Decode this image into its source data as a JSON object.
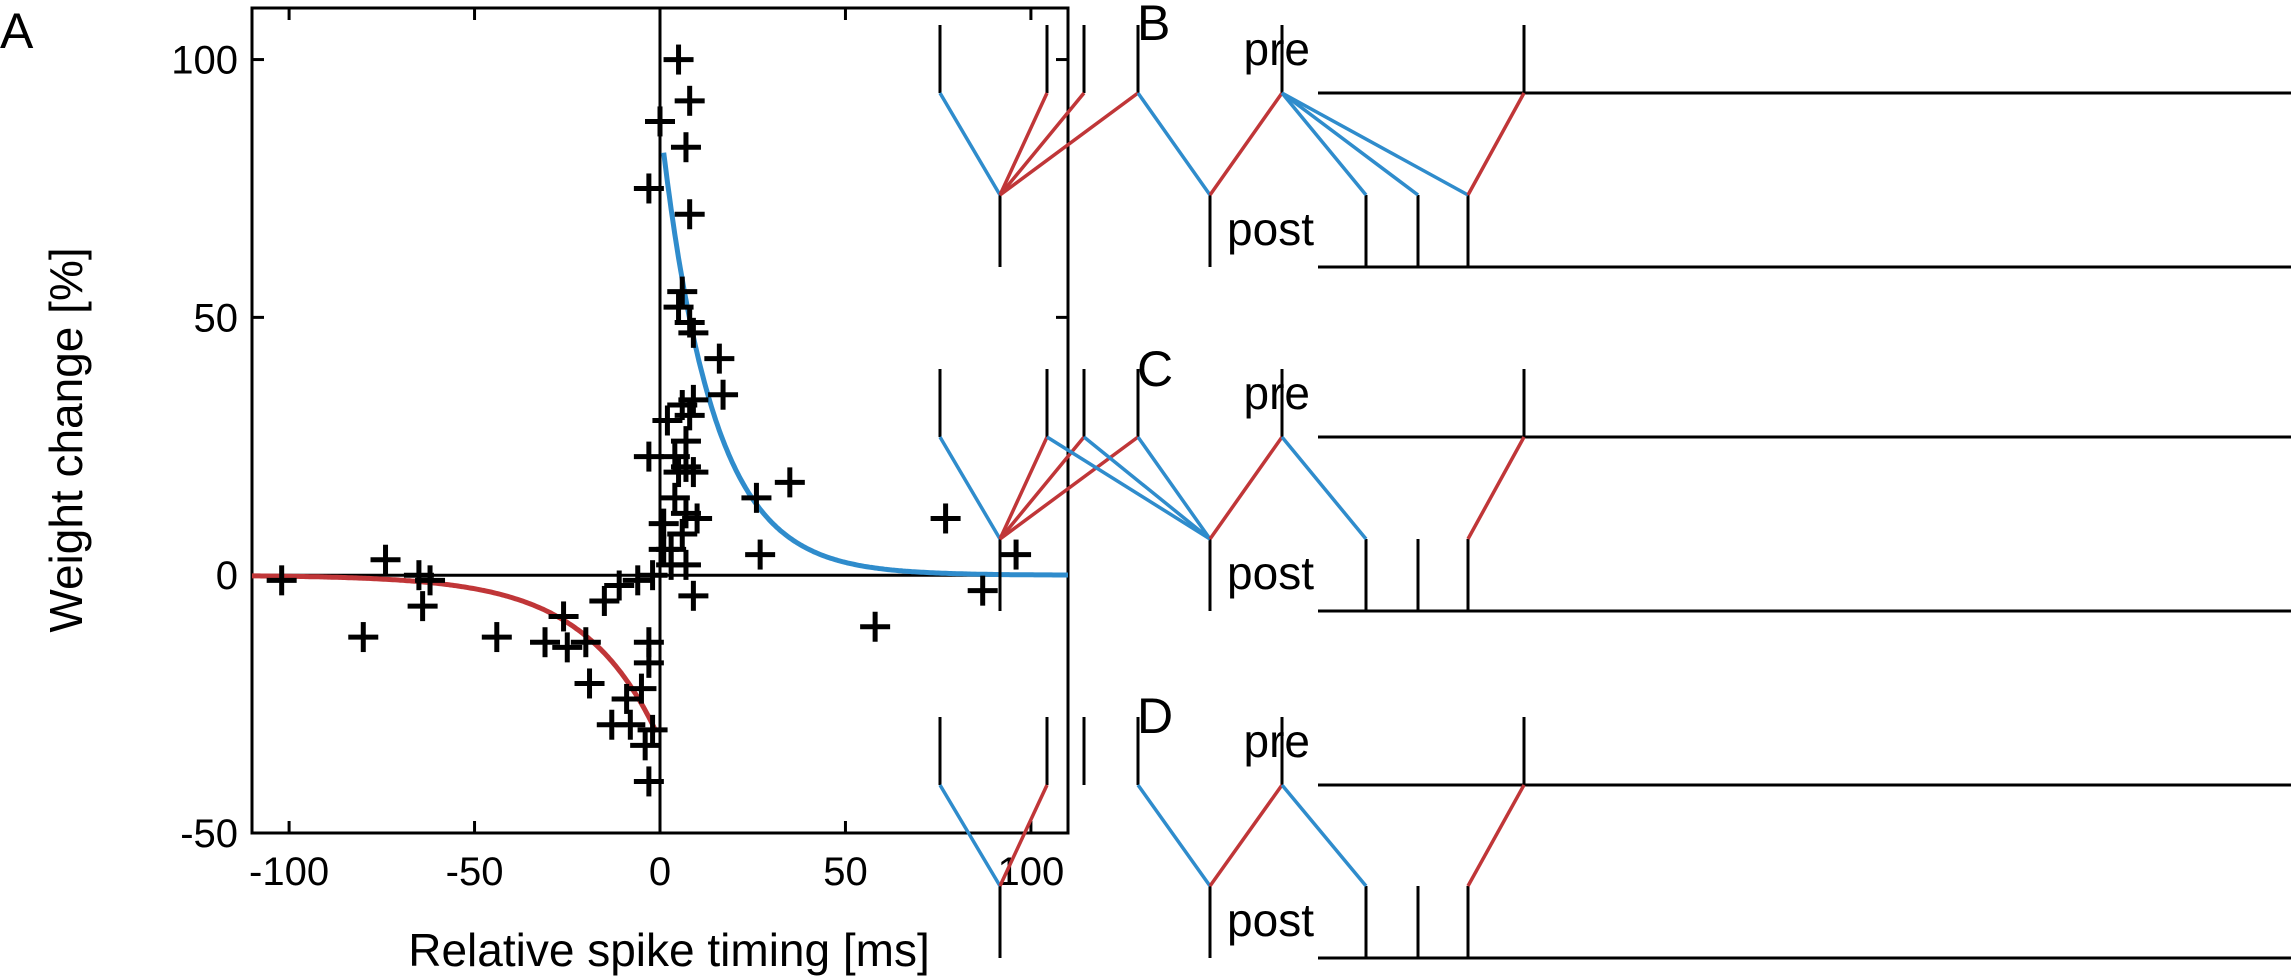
{
  "chart_data": [
    {
      "type": "scatter",
      "panel_label": "A",
      "xlabel": "Relative spike timing [ms]",
      "ylabel": "Weight change [%]",
      "xlim": [
        -110,
        110
      ],
      "ylim": [
        -50,
        110
      ],
      "xticks": [
        -100,
        -50,
        0,
        50,
        100
      ],
      "xtick_labels": [
        "-100",
        "-50",
        "0",
        "50",
        "100"
      ],
      "yticks": [
        -50,
        0,
        50,
        100
      ],
      "ytick_labels": [
        "-50",
        "0",
        "50",
        "100"
      ],
      "points": [
        [
          -102,
          -1
        ],
        [
          -80,
          -12
        ],
        [
          -74,
          3
        ],
        [
          -65,
          0
        ],
        [
          -64,
          -6
        ],
        [
          -62,
          -1
        ],
        [
          -44,
          -12
        ],
        [
          -31,
          -13
        ],
        [
          -26,
          -8
        ],
        [
          -25,
          -14
        ],
        [
          -20,
          -13
        ],
        [
          -19,
          -21
        ],
        [
          -15,
          -5
        ],
        [
          -13,
          -29
        ],
        [
          -11,
          -2
        ],
        [
          -9,
          -24
        ],
        [
          -8,
          -29
        ],
        [
          -6,
          -1
        ],
        [
          -5,
          -22
        ],
        [
          -4,
          -33
        ],
        [
          -3,
          -13
        ],
        [
          -3,
          -17
        ],
        [
          -3,
          -40
        ],
        [
          -2,
          -30
        ],
        [
          -3,
          23
        ],
        [
          -3,
          75
        ],
        [
          -2,
          0
        ],
        [
          0,
          88
        ],
        [
          1,
          5
        ],
        [
          1,
          10
        ],
        [
          2,
          30
        ],
        [
          3,
          2
        ],
        [
          3,
          5
        ],
        [
          4,
          15
        ],
        [
          4,
          23
        ],
        [
          5,
          20
        ],
        [
          5,
          52
        ],
        [
          5,
          100
        ],
        [
          6,
          8
        ],
        [
          6,
          33
        ],
        [
          6,
          55
        ],
        [
          7,
          2
        ],
        [
          7,
          12
        ],
        [
          7,
          21
        ],
        [
          7,
          26
        ],
        [
          7,
          83
        ],
        [
          8,
          92
        ],
        [
          8,
          31
        ],
        [
          8,
          49
        ],
        [
          8,
          70
        ],
        [
          9,
          -4
        ],
        [
          9,
          20
        ],
        [
          9,
          34
        ],
        [
          9,
          47
        ],
        [
          10,
          11
        ],
        [
          16,
          42
        ],
        [
          17,
          35
        ],
        [
          26,
          15
        ],
        [
          27,
          4
        ],
        [
          35,
          18
        ],
        [
          58,
          -10
        ],
        [
          77,
          11
        ],
        [
          87,
          -3
        ],
        [
          96,
          4
        ]
      ],
      "fits": [
        {
          "side": "negative",
          "color": "#c03638",
          "A": -32,
          "tau": 20
        },
        {
          "side": "positive",
          "color": "#2f8ccc",
          "A": 88,
          "tau": 14
        }
      ]
    },
    {
      "type": "raster",
      "panels": [
        {
          "label": "B",
          "pre_label": "pre",
          "post_label": "post",
          "pre_spikes": [
            940,
            1047,
            1084,
            1138,
            1282,
            1524
          ],
          "post_spikes": [
            1000,
            1210,
            1366,
            1418,
            1468
          ],
          "pairs": [
            {
              "pre": 940,
              "post": 1000,
              "color": "blue"
            },
            {
              "pre": 1047,
              "post": 1000,
              "color": "red"
            },
            {
              "pre": 1084,
              "post": 1000,
              "color": "red"
            },
            {
              "pre": 1138,
              "post": 1000,
              "color": "red"
            },
            {
              "pre": 1138,
              "post": 1210,
              "color": "blue"
            },
            {
              "pre": 1282,
              "post": 1210,
              "color": "red"
            },
            {
              "pre": 1282,
              "post": 1366,
              "color": "blue"
            },
            {
              "pre": 1282,
              "post": 1418,
              "color": "blue"
            },
            {
              "pre": 1282,
              "post": 1468,
              "color": "blue"
            },
            {
              "pre": 1524,
              "post": 1468,
              "color": "red"
            }
          ]
        },
        {
          "label": "C",
          "pre_label": "pre",
          "post_label": "post",
          "pre_spikes": [
            940,
            1047,
            1084,
            1138,
            1282,
            1524
          ],
          "post_spikes": [
            1000,
            1210,
            1366,
            1418,
            1468
          ],
          "pairs": [
            {
              "pre": 940,
              "post": 1000,
              "color": "blue"
            },
            {
              "pre": 1047,
              "post": 1000,
              "color": "red"
            },
            {
              "pre": 1084,
              "post": 1000,
              "color": "red"
            },
            {
              "pre": 1138,
              "post": 1000,
              "color": "red"
            },
            {
              "pre": 1047,
              "post": 1210,
              "color": "blue"
            },
            {
              "pre": 1084,
              "post": 1210,
              "color": "blue"
            },
            {
              "pre": 1138,
              "post": 1210,
              "color": "blue"
            },
            {
              "pre": 1282,
              "post": 1210,
              "color": "red"
            },
            {
              "pre": 1282,
              "post": 1366,
              "color": "blue"
            },
            {
              "pre": 1524,
              "post": 1468,
              "color": "red"
            }
          ]
        },
        {
          "label": "D",
          "pre_label": "pre",
          "post_label": "post",
          "pre_spikes": [
            940,
            1047,
            1084,
            1138,
            1282,
            1524
          ],
          "post_spikes": [
            1000,
            1210,
            1366,
            1418,
            1468
          ],
          "pairs": [
            {
              "pre": 940,
              "post": 1000,
              "color": "blue"
            },
            {
              "pre": 1047,
              "post": 1000,
              "color": "red"
            },
            {
              "pre": 1138,
              "post": 1210,
              "color": "blue"
            },
            {
              "pre": 1282,
              "post": 1210,
              "color": "red"
            },
            {
              "pre": 1282,
              "post": 1366,
              "color": "blue"
            },
            {
              "pre": 1524,
              "post": 1468,
              "color": "red"
            }
          ]
        }
      ]
    }
  ],
  "colors": {
    "ltp": "#2f8ccc",
    "ltd": "#c03638",
    "ink": "#000000"
  }
}
